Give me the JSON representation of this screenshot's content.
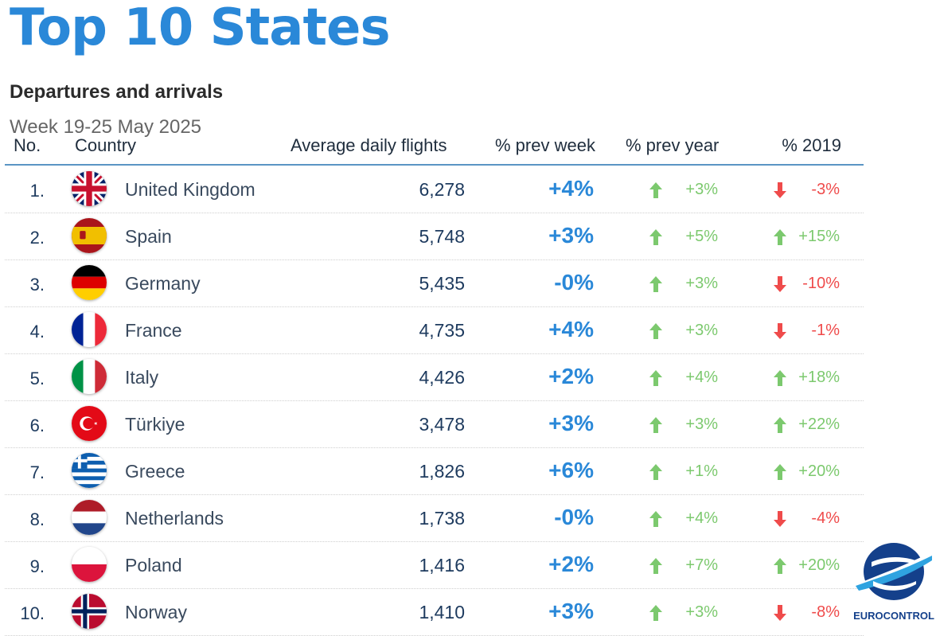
{
  "title": "Top 10 States",
  "subtitle": "Departures and arrivals",
  "week": "Week 19-25 May 2025",
  "headers": {
    "no": "No.",
    "country": "Country",
    "avg": "Average daily flights",
    "prev_week": "% prev week",
    "prev_year": "% prev year",
    "y2019": "% 2019"
  },
  "colors": {
    "accent": "#2a88d8",
    "positive": "#7cc96e",
    "negative": "#ef4b4b"
  },
  "rows": [
    {
      "no": "1.",
      "country": "United Kingdom",
      "flag": "uk-flag-icon",
      "avg": "6,278",
      "prev_week": "+4%",
      "prev_year": "+3%",
      "prev_year_dir": "up",
      "y2019": "-3%",
      "y2019_dir": "down"
    },
    {
      "no": "2.",
      "country": "Spain",
      "flag": "spain-flag-icon",
      "avg": "5,748",
      "prev_week": "+3%",
      "prev_year": "+5%",
      "prev_year_dir": "up",
      "y2019": "+15%",
      "y2019_dir": "up"
    },
    {
      "no": "3.",
      "country": "Germany",
      "flag": "germany-flag-icon",
      "avg": "5,435",
      "prev_week": "-0%",
      "prev_year": "+3%",
      "prev_year_dir": "up",
      "y2019": "-10%",
      "y2019_dir": "down"
    },
    {
      "no": "4.",
      "country": "France",
      "flag": "france-flag-icon",
      "avg": "4,735",
      "prev_week": "+4%",
      "prev_year": "+3%",
      "prev_year_dir": "up",
      "y2019": "-1%",
      "y2019_dir": "down"
    },
    {
      "no": "5.",
      "country": "Italy",
      "flag": "italy-flag-icon",
      "avg": "4,426",
      "prev_week": "+2%",
      "prev_year": "+4%",
      "prev_year_dir": "up",
      "y2019": "+18%",
      "y2019_dir": "up"
    },
    {
      "no": "6.",
      "country": "Türkiye",
      "flag": "turkiye-flag-icon",
      "avg": "3,478",
      "prev_week": "+3%",
      "prev_year": "+3%",
      "prev_year_dir": "up",
      "y2019": "+22%",
      "y2019_dir": "up"
    },
    {
      "no": "7.",
      "country": "Greece",
      "flag": "greece-flag-icon",
      "avg": "1,826",
      "prev_week": "+6%",
      "prev_year": "+1%",
      "prev_year_dir": "up",
      "y2019": "+20%",
      "y2019_dir": "up"
    },
    {
      "no": "8.",
      "country": "Netherlands",
      "flag": "netherlands-flag-icon",
      "avg": "1,738",
      "prev_week": "-0%",
      "prev_year": "+4%",
      "prev_year_dir": "up",
      "y2019": "-4%",
      "y2019_dir": "down"
    },
    {
      "no": "9.",
      "country": "Poland",
      "flag": "poland-flag-icon",
      "avg": "1,416",
      "prev_week": "+2%",
      "prev_year": "+7%",
      "prev_year_dir": "up",
      "y2019": "+20%",
      "y2019_dir": "up"
    },
    {
      "no": "10.",
      "country": "Norway",
      "flag": "norway-flag-icon",
      "avg": "1,410",
      "prev_week": "+3%",
      "prev_year": "+3%",
      "prev_year_dir": "up",
      "y2019": "-8%",
      "y2019_dir": "down"
    }
  ],
  "logo": {
    "text": "EUROCONTROL",
    "icon": "eurocontrol-logo-icon"
  }
}
